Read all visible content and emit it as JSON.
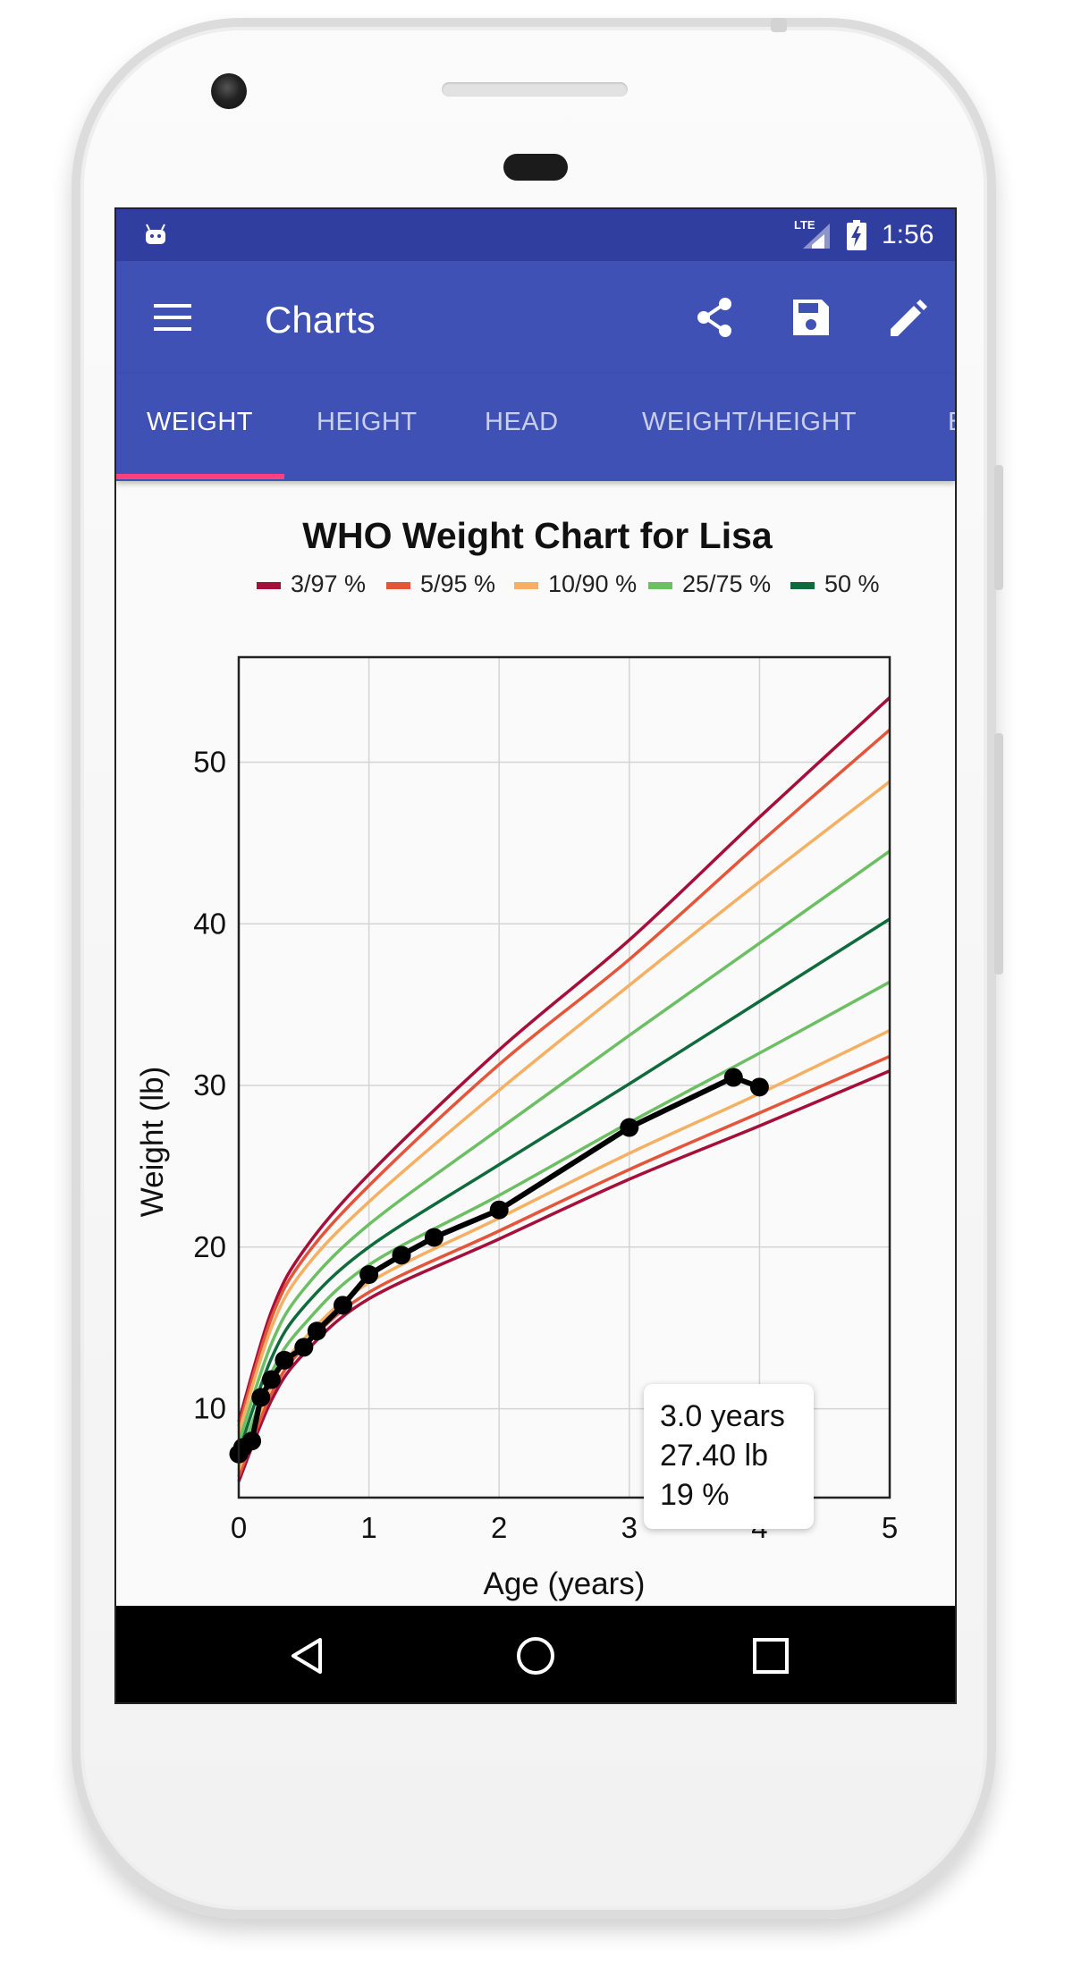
{
  "status_bar": {
    "network": "LTE",
    "time": "1:56"
  },
  "app_bar": {
    "title": "Charts"
  },
  "tabs": [
    {
      "label": "WEIGHT",
      "active": true
    },
    {
      "label": "HEIGHT",
      "active": false
    },
    {
      "label": "HEAD",
      "active": false
    },
    {
      "label": "WEIGHT/HEIGHT",
      "active": false
    },
    {
      "label": "B",
      "active": false
    }
  ],
  "tooltip": {
    "line1": "3.0 years",
    "line2": "27.40 lb",
    "line3": "19 %"
  },
  "colors": {
    "primary": "#3f51b5",
    "primary_dark": "#303f9f",
    "accent": "#ff4081",
    "p3_97": "#a50f3a",
    "p5_95": "#e4553a",
    "p10_90": "#f6b063",
    "p25_75": "#6cbf63",
    "p50": "#0f6b3c"
  },
  "chart_data": {
    "type": "line",
    "title": "WHO Weight Chart for Lisa",
    "xlabel": "Age (years)",
    "ylabel": "Weight (lb)",
    "xlim": [
      0,
      5
    ],
    "ylim": [
      4.5,
      56.5
    ],
    "x_ticks": [
      "0",
      "1",
      "2",
      "3",
      "4",
      "5"
    ],
    "y_ticks": [
      "10",
      "20",
      "30",
      "40",
      "50"
    ],
    "grid": true,
    "legend": "top",
    "percentile_x": [
      0,
      0.25,
      0.5,
      1,
      2,
      3,
      4,
      5
    ],
    "series": [
      {
        "name": "3/97 %",
        "color_key": "p3_97",
        "values": [
          5.5,
          10.5,
          13.4,
          16.8,
          20.5,
          24.2,
          27.5,
          30.9
        ]
      },
      {
        "name": "3/97 %",
        "color_key": "p3_97",
        "values": [
          9.2,
          16.0,
          19.8,
          24.5,
          32.2,
          39.0,
          46.6,
          54.0
        ],
        "no_legend": true
      },
      {
        "name": "5/95 %",
        "color_key": "p5_95",
        "values": [
          5.8,
          10.9,
          13.8,
          17.2,
          21.0,
          24.8,
          28.3,
          31.8
        ]
      },
      {
        "name": "5/95 %",
        "color_key": "p5_95",
        "values": [
          8.9,
          15.6,
          19.3,
          23.8,
          31.3,
          37.8,
          45.0,
          52.0
        ],
        "no_legend": true
      },
      {
        "name": "10/90 %",
        "color_key": "p10_90",
        "values": [
          6.2,
          11.4,
          14.3,
          17.8,
          21.8,
          25.8,
          29.5,
          33.4
        ]
      },
      {
        "name": "10/90 %",
        "color_key": "p10_90",
        "values": [
          8.5,
          15.0,
          18.6,
          22.8,
          29.7,
          36.2,
          42.6,
          48.8
        ],
        "no_legend": true
      },
      {
        "name": "25/75 %",
        "color_key": "p25_75",
        "values": [
          6.7,
          12.2,
          15.2,
          18.9,
          23.2,
          27.7,
          32.0,
          36.4
        ]
      },
      {
        "name": "25/75 %",
        "color_key": "p25_75",
        "values": [
          7.9,
          14.0,
          17.4,
          21.4,
          27.3,
          33.1,
          38.8,
          44.5
        ],
        "no_legend": true
      },
      {
        "name": "50 %",
        "color_key": "p50",
        "values": [
          7.3,
          13.1,
          16.3,
          20.0,
          25.1,
          30.1,
          35.2,
          40.3
        ]
      }
    ],
    "child": {
      "name": "Lisa",
      "x": [
        0,
        0.03,
        0.1,
        0.17,
        0.25,
        0.35,
        0.5,
        0.6,
        0.8,
        1.0,
        1.25,
        1.5,
        2.0,
        3.0,
        3.8,
        4.0
      ],
      "y": [
        7.2,
        7.6,
        8.0,
        10.7,
        11.8,
        13.0,
        13.8,
        14.8,
        16.4,
        18.3,
        19.5,
        20.6,
        22.3,
        27.4,
        30.5,
        29.9
      ]
    }
  }
}
